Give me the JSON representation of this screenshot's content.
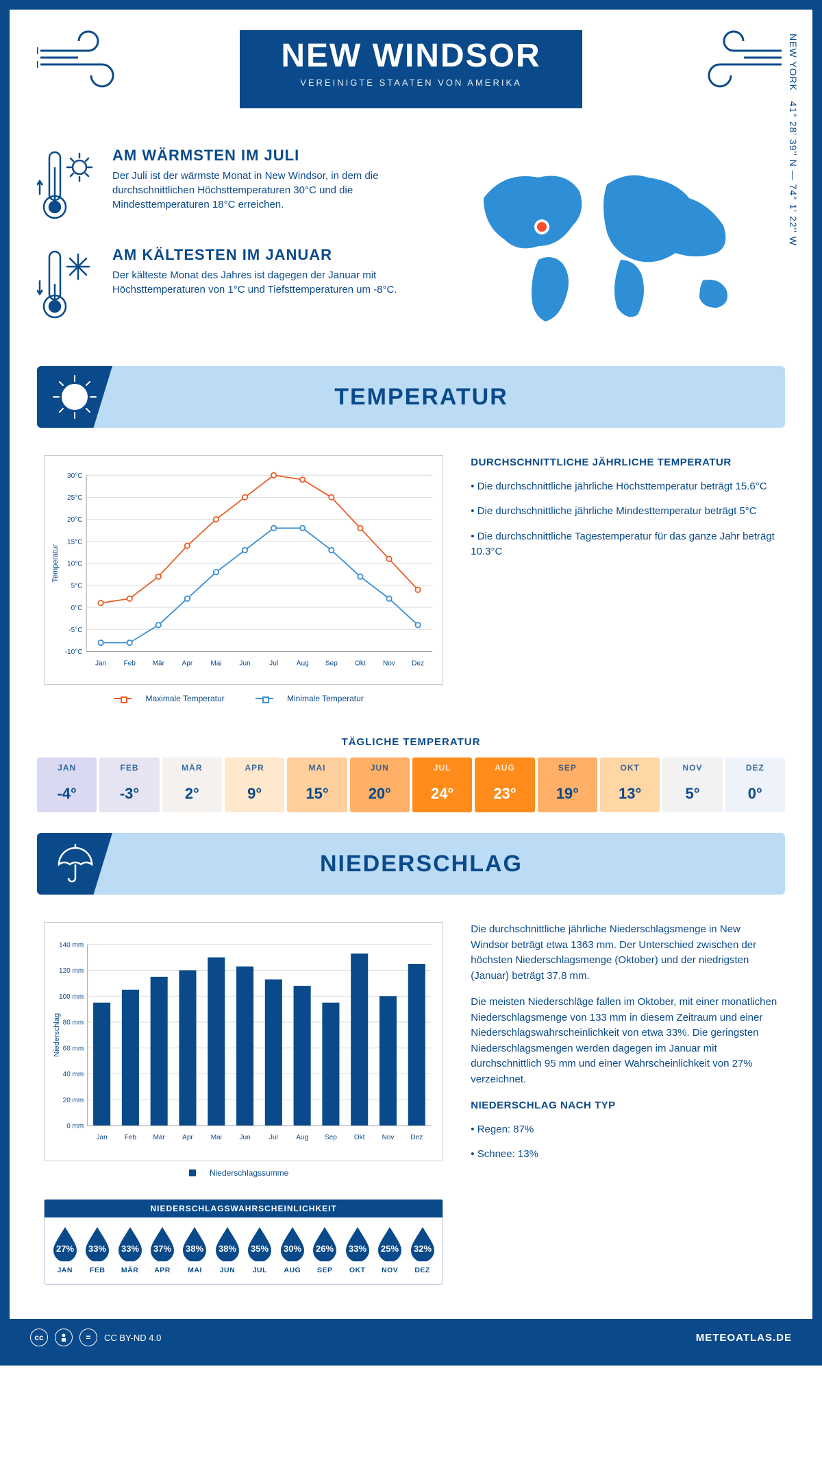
{
  "header": {
    "title": "NEW WINDSOR",
    "subtitle": "VEREINIGTE STAATEN VON AMERIKA"
  },
  "location": {
    "coords": "41° 28' 39'' N — 74° 1' 22'' W",
    "region": "NEW YORK"
  },
  "facts": {
    "warm": {
      "title": "AM WÄRMSTEN IM JULI",
      "text": "Der Juli ist der wärmste Monat in New Windsor, in dem die durchschnittlichen Höchsttemperaturen 30°C und die Mindesttemperaturen 18°C erreichen."
    },
    "cold": {
      "title": "AM KÄLTESTEN IM JANUAR",
      "text": "Der kälteste Monat des Jahres ist dagegen der Januar mit Höchsttemperaturen von 1°C und Tiefsttemperaturen um -8°C."
    }
  },
  "sections": {
    "temp_title": "TEMPERATUR",
    "precip_title": "NIEDERSCHLAG"
  },
  "temp_chart": {
    "type": "line",
    "months": [
      "Jan",
      "Feb",
      "Mär",
      "Apr",
      "Mai",
      "Jun",
      "Jul",
      "Aug",
      "Sep",
      "Okt",
      "Nov",
      "Dez"
    ],
    "max": [
      1,
      2,
      7,
      14,
      20,
      25,
      30,
      29,
      25,
      18,
      11,
      4
    ],
    "min": [
      -8,
      -8,
      -4,
      2,
      8,
      13,
      18,
      18,
      13,
      7,
      2,
      -4
    ],
    "ylim": [
      -10,
      30
    ],
    "ytick_step": 5,
    "ylabel": "Temperatur",
    "y_unit": "°C",
    "colors": {
      "max": "#e8602c",
      "min": "#3b8fd4",
      "grid": "#d9d9d9",
      "axis": "#666"
    },
    "legend": {
      "max": "Maximale Temperatur",
      "min": "Minimale Temperatur"
    },
    "title_fontsize": 15,
    "label_fontsize": 11,
    "line_width": 2,
    "marker_size": 4
  },
  "temp_text": {
    "heading": "DURCHSCHNITTLICHE JÄHRLICHE TEMPERATUR",
    "bullets": [
      "• Die durchschnittliche jährliche Höchsttemperatur beträgt 15.6°C",
      "• Die durchschnittliche jährliche Mindesttemperatur beträgt 5°C",
      "• Die durchschnittliche Tagestemperatur für das ganze Jahr beträgt 10.3°C"
    ]
  },
  "daily_temp": {
    "title": "TÄGLICHE TEMPERATUR",
    "months": [
      "JAN",
      "FEB",
      "MÄR",
      "APR",
      "MAI",
      "JUN",
      "JUL",
      "AUG",
      "SEP",
      "OKT",
      "NOV",
      "DEZ"
    ],
    "values": [
      "-4°",
      "-3°",
      "2°",
      "9°",
      "15°",
      "20°",
      "24°",
      "23°",
      "19°",
      "13°",
      "5°",
      "0°"
    ],
    "bg_colors": [
      "#d9d9f2",
      "#e6e4f2",
      "#f5f1ee",
      "#ffe8cc",
      "#ffcf9e",
      "#ffb066",
      "#ff8c1a",
      "#ff8c1a",
      "#ffb066",
      "#ffd6a6",
      "#f2f2f2",
      "#eef3fb"
    ],
    "text_colors": [
      "#0a4a8a",
      "#0a4a8a",
      "#0a4a8a",
      "#0a4a8a",
      "#0a4a8a",
      "#0a4a8a",
      "#ffffff",
      "#ffffff",
      "#0a4a8a",
      "#0a4a8a",
      "#0a4a8a",
      "#0a4a8a"
    ]
  },
  "precip_chart": {
    "type": "bar",
    "months": [
      "Jan",
      "Feb",
      "Mär",
      "Apr",
      "Mai",
      "Jun",
      "Jul",
      "Aug",
      "Sep",
      "Okt",
      "Nov",
      "Dez"
    ],
    "values": [
      95,
      105,
      115,
      120,
      130,
      123,
      113,
      108,
      95,
      133,
      100,
      125
    ],
    "ylim": [
      0,
      140
    ],
    "ytick_step": 20,
    "ylabel": "Niederschlag",
    "y_unit": " mm",
    "bar_color": "#0a4a8a",
    "grid_color": "#d9d9d9",
    "legend": "Niederschlagssumme",
    "bar_width": 0.6
  },
  "precip_text": {
    "p1": "Die durchschnittliche jährliche Niederschlagsmenge in New Windsor beträgt etwa 1363 mm. Der Unterschied zwischen der höchsten Niederschlagsmenge (Oktober) und der niedrigsten (Januar) beträgt 37.8 mm.",
    "p2": "Die meisten Niederschläge fallen im Oktober, mit einer monatlichen Niederschlagsmenge von 133 mm in diesem Zeitraum und einer Niederschlagswahrscheinlichkeit von etwa 33%. Die geringsten Niederschlagsmengen werden dagegen im Januar mit durchschnittlich 95 mm und einer Wahrscheinlichkeit von 27% verzeichnet.",
    "type_heading": "NIEDERSCHLAG NACH TYP",
    "type_bullets": [
      "• Regen: 87%",
      "• Schnee: 13%"
    ]
  },
  "precip_prob": {
    "title": "NIEDERSCHLAGSWAHRSCHEINLICHKEIT",
    "months": [
      "JAN",
      "FEB",
      "MÄR",
      "APR",
      "MAI",
      "JUN",
      "JUL",
      "AUG",
      "SEP",
      "OKT",
      "NOV",
      "DEZ"
    ],
    "pct": [
      "27%",
      "33%",
      "33%",
      "37%",
      "38%",
      "38%",
      "35%",
      "30%",
      "26%",
      "33%",
      "25%",
      "32%"
    ],
    "drop_color": "#0a4a8a"
  },
  "footer": {
    "license": "CC BY-ND 4.0",
    "source": "METEOATLAS.DE"
  },
  "colors": {
    "primary": "#0a4a8a",
    "section_bg": "#bcdcf5",
    "map": "#2e8fd6"
  }
}
